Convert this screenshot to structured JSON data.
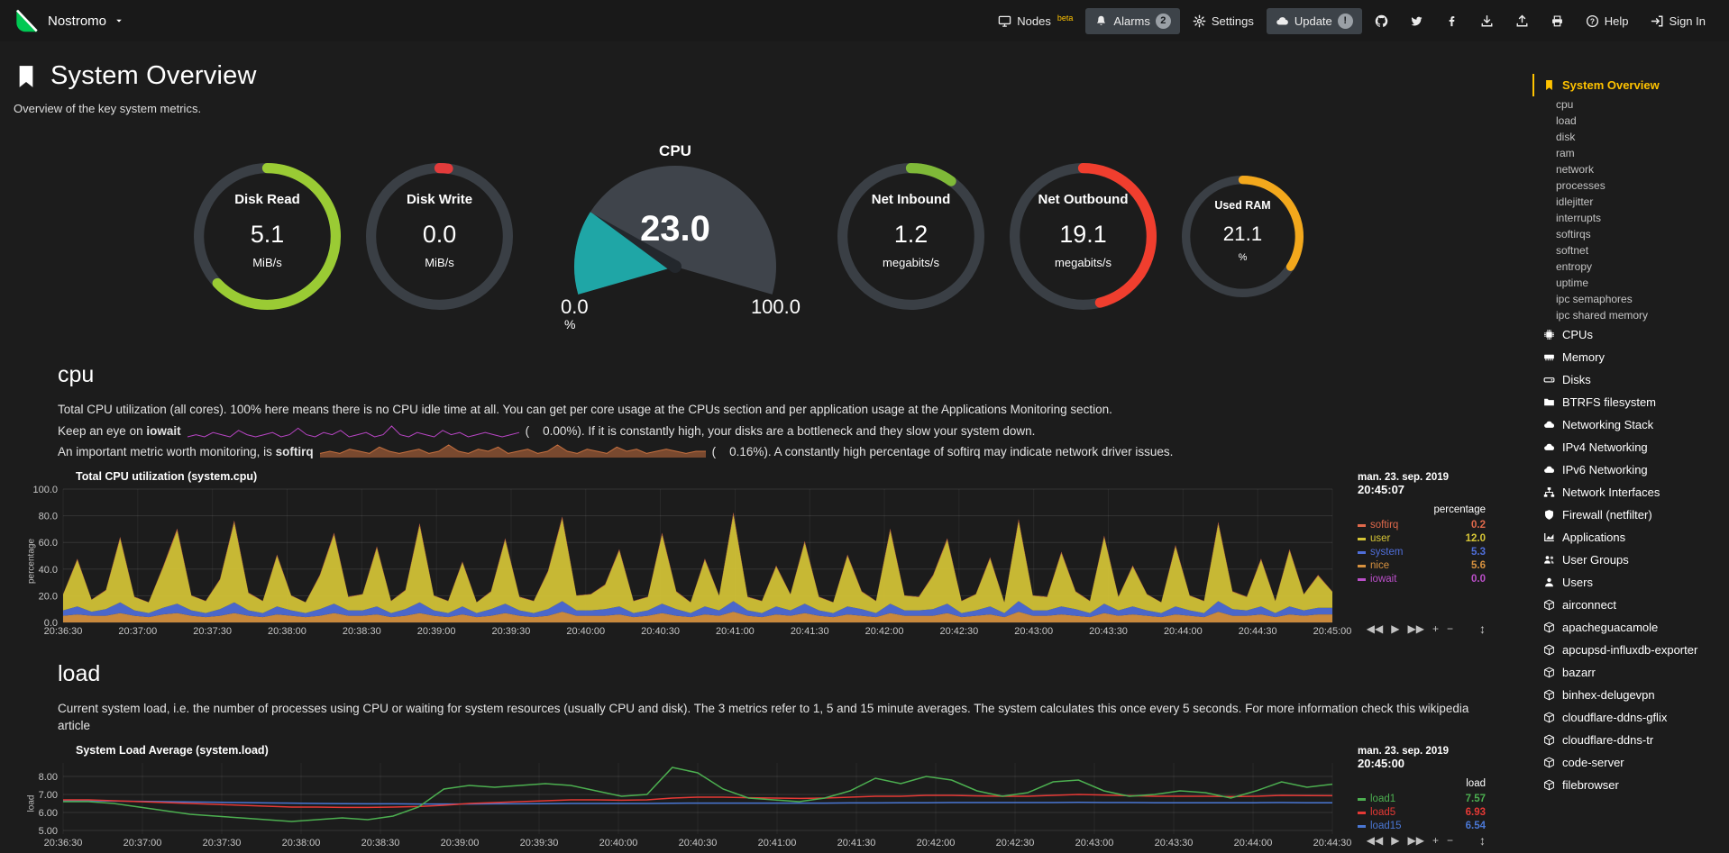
{
  "colors": {
    "accent": "#FFC300",
    "background": "#1c1c1c",
    "topbar": "#191919",
    "panel": "#3d4349",
    "logo_green": "#00C853",
    "muted_text": "#c8c8c8",
    "gauge_track": "#3a3f45",
    "gauge_dial": "#3f444b",
    "needle": "#23272c"
  },
  "topbar": {
    "hostname": "Nostromo",
    "items": [
      {
        "label": "Nodes",
        "icon": "monitor",
        "badge": "beta",
        "badge_style": "beta",
        "name": "nodes"
      },
      {
        "label": "Alarms",
        "icon": "bell",
        "badge": "2",
        "badge_style": "circle",
        "boxed": true,
        "name": "alarms"
      },
      {
        "label": "Settings",
        "icon": "gear",
        "name": "settings"
      },
      {
        "label": "Update",
        "icon": "cloud",
        "badge": "!",
        "badge_style": "circle",
        "boxed": true,
        "name": "update"
      },
      {
        "icon": "github",
        "name": "github"
      },
      {
        "icon": "twitter",
        "name": "twitter"
      },
      {
        "icon": "facebook",
        "name": "facebook"
      },
      {
        "icon": "download",
        "name": "download"
      },
      {
        "icon": "upload",
        "name": "upload"
      },
      {
        "icon": "print",
        "name": "print"
      },
      {
        "label": "Help",
        "icon": "help",
        "name": "help"
      },
      {
        "label": "Sign In",
        "icon": "signin",
        "name": "sign-in"
      }
    ]
  },
  "header": {
    "title": "System Overview",
    "subtitle": "Overview of the key system metrics."
  },
  "gauges_row": {
    "left": [
      {
        "id": "disk-read",
        "title": "Disk Read",
        "value": "5.1",
        "units": "MiB/s",
        "color": "#9ACB34",
        "fraction": 0.63,
        "size": 165
      },
      {
        "id": "disk-write",
        "title": "Disk Write",
        "value": "0.0",
        "units": "MiB/s",
        "color": "#E33B3B",
        "fraction": 0.02,
        "size": 165
      }
    ],
    "cpu": {
      "title": "CPU",
      "value": "23.0",
      "min": "0.0",
      "max": "100.0",
      "units": "%",
      "fraction": 0.23,
      "color": "#1FA6A6"
    },
    "right": [
      {
        "id": "net-inbound",
        "title": "Net Inbound",
        "value": "1.2",
        "units": "megabits/s",
        "color": "#7FB938",
        "fraction": 0.1,
        "size": 165
      },
      {
        "id": "net-outbound",
        "title": "Net Outbound",
        "value": "19.1",
        "units": "megabits/s",
        "color": "#F03E2E",
        "fraction": 0.46,
        "size": 165
      },
      {
        "id": "used-ram",
        "title": "Used RAM",
        "value": "21.1",
        "units": "%",
        "color": "#F3A81C",
        "fraction": 0.34,
        "size": 137
      }
    ]
  },
  "chart_controls": {
    "rewind": "◀◀",
    "play": "▶",
    "forward": "▶▶",
    "zoom_in": "+",
    "zoom_out": "−",
    "resize": "↕"
  },
  "cpu_section": {
    "heading": "cpu",
    "p1": "Total CPU utilization (all cores). 100% here means there is no CPU idle time at all. You can get per core usage at the CPUs section and per application usage at the Applications Monitoring section.",
    "p2_pre": "Keep an eye on ",
    "p2_bold": "iowait",
    "p2_after": "(    0.00%). If it is constantly high, your disks are a bottleneck and they slow your system down.",
    "p3_pre": "An important metric worth monitoring, is ",
    "p3_bold": "softirq",
    "p3_after": "(    0.16%). A constantly high percentage of softirq may indicate network driver issues.",
    "iowait_spark": {
      "color": "#B845C4",
      "data": [
        0,
        1,
        0,
        2,
        1,
        0,
        3,
        1,
        0,
        1,
        2,
        0,
        1,
        4,
        1,
        0,
        2,
        1,
        3,
        0,
        1,
        2,
        0,
        1,
        5,
        1,
        0,
        2,
        1,
        0,
        3,
        1,
        2,
        0,
        1,
        2,
        1,
        0,
        1,
        2
      ]
    },
    "softirq_spark": {
      "color": "#C6703F",
      "data": [
        2,
        3,
        2,
        4,
        3,
        2,
        5,
        3,
        2,
        3,
        4,
        2,
        3,
        6,
        3,
        2,
        4,
        3,
        5,
        2,
        3,
        4,
        2,
        3,
        6,
        3,
        2,
        4,
        3,
        2,
        5,
        3,
        4,
        2,
        3,
        4,
        3,
        2,
        3,
        3
      ]
    }
  },
  "cpu_chart": {
    "name": "cpu",
    "type": "area",
    "stacked": true,
    "title": "Total CPU utilization (system.cpu)",
    "date": "man. 23. sep. 2019",
    "time": "20:45:07",
    "ylabel": "percentage",
    "legend_header": "percentage",
    "ymin": 0,
    "ymax": 100,
    "yticks": [
      {
        "v": 100,
        "l": "100.0"
      },
      {
        "v": 80,
        "l": "80.0"
      },
      {
        "v": 60,
        "l": "60.0"
      },
      {
        "v": 40,
        "l": "40.0"
      },
      {
        "v": 20,
        "l": "20.0"
      },
      {
        "v": 0,
        "l": "0.0"
      }
    ],
    "xticks": [
      "20:36:30",
      "20:37:00",
      "20:37:30",
      "20:38:00",
      "20:38:30",
      "20:39:00",
      "20:39:30",
      "20:40:00",
      "20:40:30",
      "20:41:00",
      "20:41:30",
      "20:42:00",
      "20:42:30",
      "20:43:00",
      "20:43:30",
      "20:44:00",
      "20:44:30",
      "20:45:00"
    ],
    "stack_order": [
      "nice",
      "system",
      "user",
      "softirq",
      "iowait"
    ],
    "series": [
      {
        "name": "softirq",
        "color": "#E0694B",
        "value": "0.2",
        "data": [
          0.3,
          0.8,
          0.2,
          0.4,
          1.2,
          0.3,
          0.2,
          0.7,
          1.4,
          0.3,
          0.2,
          0.5,
          1.5,
          0.4,
          0.2,
          0.9,
          0.3,
          0.2,
          0.6,
          1.3,
          0.3,
          0.3,
          1.1,
          0.2,
          0.4,
          1.4,
          0.3,
          0.2,
          0.8,
          0.2,
          0.4,
          1.2,
          0.3,
          0.2,
          0.7,
          1.5,
          0.3,
          0.3,
          0.5,
          1.0,
          0.2,
          0.3,
          1.3,
          0.4,
          0.2,
          0.9,
          0.3,
          1.6,
          0.3,
          0.2,
          0.7,
          0.3,
          1.1,
          0.3,
          0.2,
          0.9,
          0.4,
          0.2,
          1.4,
          0.3,
          0.3,
          0.6,
          1.2,
          0.2,
          0.3,
          0.9,
          0.2,
          1.5,
          0.3,
          0.3,
          1.0,
          0.4,
          0.2,
          1.2,
          0.3,
          0.7,
          0.3,
          0.2,
          1.1,
          0.3,
          0.2,
          1.4,
          0.4,
          0.3,
          0.9,
          0.2,
          1.0,
          0.3,
          0.6,
          0.2
        ]
      },
      {
        "name": "user",
        "color": "#D6C536",
        "value": "12.0",
        "data": [
          12,
          35,
          9,
          14,
          48,
          10,
          8,
          30,
          55,
          11,
          9,
          22,
          60,
          13,
          9,
          38,
          11,
          8,
          25,
          52,
          10,
          12,
          44,
          9,
          14,
          58,
          11,
          9,
          33,
          8,
          13,
          48,
          10,
          9,
          28,
          62,
          11,
          12,
          18,
          42,
          9,
          10,
          52,
          13,
          8,
          35,
          11,
          65,
          10,
          9,
          30,
          12,
          46,
          10,
          8,
          38,
          13,
          9,
          55,
          11,
          10,
          25,
          48,
          9,
          12,
          36,
          8,
          60,
          11,
          10,
          40,
          13,
          9,
          50,
          10,
          30,
          12,
          8,
          45,
          11,
          9,
          58,
          13,
          10,
          35,
          9,
          42,
          12,
          24,
          12
        ]
      },
      {
        "name": "system",
        "color": "#4F6ED9",
        "value": "5.3",
        "data": [
          4,
          6,
          3,
          5,
          8,
          4,
          3,
          5,
          7,
          4,
          3,
          5,
          8,
          4,
          3,
          6,
          4,
          3,
          5,
          7,
          4,
          4,
          6,
          3,
          5,
          8,
          4,
          3,
          6,
          3,
          5,
          7,
          4,
          3,
          5,
          8,
          4,
          4,
          5,
          6,
          3,
          4,
          7,
          5,
          3,
          6,
          4,
          8,
          4,
          3,
          6,
          4,
          7,
          4,
          3,
          6,
          5,
          3,
          7,
          4,
          4,
          5,
          7,
          3,
          4,
          6,
          3,
          8,
          4,
          4,
          6,
          5,
          3,
          7,
          4,
          6,
          4,
          3,
          6,
          4,
          3,
          8,
          5,
          4,
          6,
          3,
          6,
          4,
          5,
          5
        ]
      },
      {
        "name": "nice",
        "color": "#D8923F",
        "value": "5.6",
        "data": [
          5,
          6,
          5,
          5,
          7,
          5,
          4,
          6,
          7,
          5,
          4,
          5,
          7,
          5,
          4,
          6,
          5,
          4,
          5,
          7,
          5,
          5,
          6,
          4,
          5,
          7,
          5,
          4,
          6,
          4,
          5,
          7,
          5,
          4,
          5,
          8,
          5,
          5,
          5,
          6,
          4,
          5,
          7,
          5,
          4,
          6,
          5,
          8,
          5,
          4,
          6,
          5,
          7,
          5,
          4,
          6,
          5,
          4,
          7,
          5,
          5,
          5,
          7,
          4,
          5,
          6,
          4,
          8,
          5,
          5,
          6,
          5,
          4,
          7,
          5,
          6,
          5,
          4,
          6,
          5,
          4,
          8,
          5,
          5,
          6,
          4,
          6,
          5,
          6,
          6
        ]
      },
      {
        "name": "iowait",
        "color": "#BA4FC8",
        "value": "0.0",
        "data": [
          0,
          0,
          0,
          0,
          0,
          0,
          0,
          0,
          0,
          0,
          0,
          0,
          0,
          0,
          0,
          0,
          0,
          0,
          0,
          0,
          0,
          0,
          0,
          0,
          0,
          0,
          0,
          0,
          0,
          0,
          0,
          0,
          0,
          0,
          0,
          0,
          0,
          0,
          0,
          0,
          0,
          0,
          0,
          0,
          0,
          0,
          0,
          0,
          0,
          0,
          0,
          0,
          0,
          0,
          0,
          0,
          0,
          0,
          0,
          0,
          0,
          0,
          0,
          0,
          0,
          0,
          0,
          0,
          0,
          0,
          0,
          0,
          0,
          0,
          0,
          0,
          0,
          0,
          0,
          0,
          0,
          0,
          0,
          0,
          0,
          0,
          0,
          0,
          0,
          0
        ]
      }
    ]
  },
  "load_section": {
    "heading": "load",
    "p1": "Current system load, i.e. the number of processes using CPU or waiting for system resources (usually CPU and disk). The 3 metrics refer to 1, 5 and 15 minute averages. The system calculates this once every 5 seconds. For more information check this wikipedia article"
  },
  "load_chart": {
    "name": "load",
    "type": "line",
    "stacked": false,
    "title": "System Load Average (system.load)",
    "date": "man. 23. sep. 2019",
    "time": "20:45:00",
    "ylabel": "load",
    "legend_header": "load",
    "ymin": 4.8,
    "ymax": 8.75,
    "yticks": [
      {
        "v": 8,
        "l": "8.00"
      },
      {
        "v": 7,
        "l": "7.00"
      },
      {
        "v": 6,
        "l": "6.00"
      },
      {
        "v": 5,
        "l": "5.00"
      }
    ],
    "xticks": [
      "20:36:30",
      "20:37:00",
      "20:37:30",
      "20:38:00",
      "20:38:30",
      "20:39:00",
      "20:39:30",
      "20:40:00",
      "20:40:30",
      "20:41:00",
      "20:41:30",
      "20:42:00",
      "20:42:30",
      "20:43:00",
      "20:43:30",
      "20:44:00",
      "20:44:30"
    ],
    "draw_order": [
      "load15",
      "load5",
      "load1"
    ],
    "series": [
      {
        "name": "load1",
        "color": "#4CAF50",
        "value": "7.57",
        "data": [
          6.6,
          6.6,
          6.5,
          6.3,
          6.1,
          5.9,
          5.8,
          5.7,
          5.6,
          5.5,
          5.6,
          5.7,
          5.6,
          5.8,
          6.3,
          7.3,
          7.5,
          7.4,
          7.5,
          7.6,
          7.5,
          7.2,
          6.9,
          7.0,
          8.5,
          8.2,
          7.3,
          6.8,
          6.7,
          6.6,
          6.8,
          7.2,
          7.9,
          7.6,
          8.0,
          7.8,
          7.2,
          6.9,
          7.1,
          7.7,
          7.8,
          7.2,
          6.9,
          7.0,
          7.2,
          7.1,
          6.8,
          7.2,
          7.7,
          7.4,
          7.57
        ]
      },
      {
        "name": "load5",
        "color": "#E53935",
        "value": "6.93",
        "data": [
          6.7,
          6.7,
          6.65,
          6.6,
          6.55,
          6.5,
          6.45,
          6.4,
          6.35,
          6.3,
          6.3,
          6.28,
          6.28,
          6.3,
          6.33,
          6.4,
          6.5,
          6.55,
          6.6,
          6.65,
          6.7,
          6.7,
          6.68,
          6.7,
          6.8,
          6.85,
          6.85,
          6.82,
          6.8,
          6.78,
          6.8,
          6.85,
          6.9,
          6.9,
          6.95,
          6.95,
          6.92,
          6.9,
          6.9,
          6.95,
          7.0,
          6.97,
          6.93,
          6.9,
          6.9,
          6.9,
          6.88,
          6.9,
          6.95,
          6.94,
          6.93
        ]
      },
      {
        "name": "load15",
        "color": "#4A77D4",
        "value": "6.54",
        "data": [
          6.65,
          6.65,
          6.63,
          6.62,
          6.6,
          6.58,
          6.57,
          6.55,
          6.53,
          6.52,
          6.5,
          6.49,
          6.48,
          6.48,
          6.47,
          6.47,
          6.47,
          6.48,
          6.48,
          6.49,
          6.5,
          6.5,
          6.5,
          6.5,
          6.51,
          6.52,
          6.52,
          6.52,
          6.52,
          6.52,
          6.52,
          6.53,
          6.53,
          6.54,
          6.54,
          6.55,
          6.55,
          6.55,
          6.55,
          6.55,
          6.56,
          6.55,
          6.55,
          6.54,
          6.54,
          6.54,
          6.54,
          6.54,
          6.55,
          6.54,
          6.54
        ]
      }
    ]
  },
  "sidebar": {
    "items": [
      {
        "label": "System Overview",
        "icon": "bookmark",
        "selected": true
      },
      {
        "label": "cpu",
        "sub": true
      },
      {
        "label": "load",
        "sub": true
      },
      {
        "label": "disk",
        "sub": true
      },
      {
        "label": "ram",
        "sub": true
      },
      {
        "label": "network",
        "sub": true
      },
      {
        "label": "processes",
        "sub": true
      },
      {
        "label": "idlejitter",
        "sub": true
      },
      {
        "label": "interrupts",
        "sub": true
      },
      {
        "label": "softirqs",
        "sub": true
      },
      {
        "label": "softnet",
        "sub": true
      },
      {
        "label": "entropy",
        "sub": true
      },
      {
        "label": "uptime",
        "sub": true
      },
      {
        "label": "ipc semaphores",
        "sub": true
      },
      {
        "label": "ipc shared memory",
        "sub": true
      },
      {
        "label": "CPUs",
        "icon": "chip"
      },
      {
        "label": "Memory",
        "icon": "memory"
      },
      {
        "label": "Disks",
        "icon": "hdd"
      },
      {
        "label": "BTRFS filesystem",
        "icon": "folder"
      },
      {
        "label": "Networking Stack",
        "icon": "cloud"
      },
      {
        "label": "IPv4 Networking",
        "icon": "cloud"
      },
      {
        "label": "IPv6 Networking",
        "icon": "cloud"
      },
      {
        "label": "Network Interfaces",
        "icon": "network"
      },
      {
        "label": "Firewall (netfilter)",
        "icon": "shield"
      },
      {
        "label": "Applications",
        "icon": "chart"
      },
      {
        "label": "User Groups",
        "icon": "users"
      },
      {
        "label": "Users",
        "icon": "user"
      },
      {
        "label": "airconnect",
        "icon": "cube"
      },
      {
        "label": "apacheguacamole",
        "icon": "cube"
      },
      {
        "label": "apcupsd-influxdb-exporter",
        "icon": "cube"
      },
      {
        "label": "bazarr",
        "icon": "cube"
      },
      {
        "label": "binhex-delugevpn",
        "icon": "cube"
      },
      {
        "label": "cloudflare-ddns-gflix",
        "icon": "cube"
      },
      {
        "label": "cloudflare-ddns-tr",
        "icon": "cube"
      },
      {
        "label": "code-server",
        "icon": "cube"
      },
      {
        "label": "filebrowser",
        "icon": "cube"
      }
    ]
  }
}
